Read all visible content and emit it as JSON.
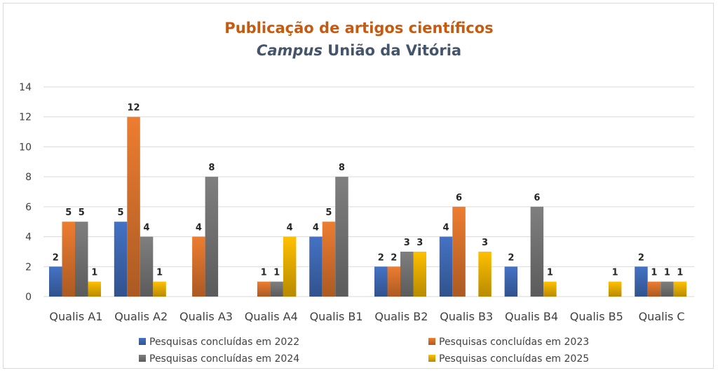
{
  "chart_data": {
    "type": "bar",
    "title_line1": "Publicação de artigos científicos",
    "title_line2_italic": "Campus",
    "title_line2_rest": " União da Vitória",
    "ylim": [
      0,
      14
    ],
    "yticks": [
      "0",
      "2",
      "4",
      "6",
      "8",
      "10",
      "12",
      "14"
    ],
    "grid": true,
    "legend_position": "bottom",
    "categories": [
      "Qualis A1",
      "Qualis A2",
      "Qualis A3",
      "Qualis A4",
      "Qualis B1",
      "Qualis B2",
      "Qualis B3",
      "Qualis B4",
      "Qualis B5",
      "Qualis C"
    ],
    "series": [
      {
        "name": "Pesquisas concluídas em 2022",
        "color": "#4472c4",
        "values": [
          2,
          5,
          null,
          null,
          4,
          2,
          4,
          2,
          null,
          2
        ]
      },
      {
        "name": "Pesquisas concluídas em 2023",
        "color": "#ed7d31",
        "values": [
          5,
          12,
          4,
          1,
          5,
          2,
          6,
          null,
          null,
          1
        ]
      },
      {
        "name": "Pesquisas concluídas em 2024",
        "color": "#7f7f7f",
        "values": [
          5,
          4,
          8,
          1,
          8,
          3,
          null,
          6,
          null,
          1
        ]
      },
      {
        "name": "Pesquisas concluídas em 2025",
        "color": "#ffc000",
        "values": [
          1,
          1,
          null,
          4,
          null,
          3,
          3,
          1,
          1,
          1
        ]
      }
    ]
  }
}
